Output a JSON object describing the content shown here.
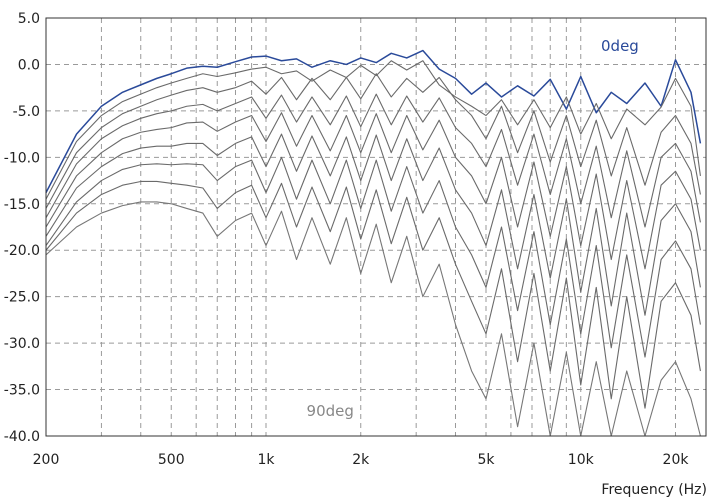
{
  "chart_data": {
    "type": "line",
    "title": "",
    "xlabel": "Frequency (Hz)",
    "ylabel": "",
    "xscale": "log",
    "xlim": [
      200,
      25000
    ],
    "ylim": [
      -40,
      5
    ],
    "grid": true,
    "x_ticks": [
      {
        "value": 200,
        "label": "200"
      },
      {
        "value": 500,
        "label": "500"
      },
      {
        "value": 1000,
        "label": "1k"
      },
      {
        "value": 2000,
        "label": "2k"
      },
      {
        "value": 5000,
        "label": "5k"
      },
      {
        "value": 10000,
        "label": "10k"
      },
      {
        "value": 20000,
        "label": "20k"
      }
    ],
    "x_minor_grid": [
      300,
      400,
      600,
      700,
      800,
      900,
      3000,
      4000,
      6000,
      7000,
      8000,
      9000
    ],
    "y_ticks": [
      {
        "value": 5,
        "label": "5.0"
      },
      {
        "value": 0,
        "label": "0.0"
      },
      {
        "value": -5,
        "label": "-5.0"
      },
      {
        "value": -10,
        "label": "-10.0"
      },
      {
        "value": -15,
        "label": "-15.0"
      },
      {
        "value": -20,
        "label": "-20.0"
      },
      {
        "value": -25,
        "label": "-25.0"
      },
      {
        "value": -30,
        "label": "-30.0"
      },
      {
        "value": -35,
        "label": "-35.0"
      },
      {
        "value": -40,
        "label": "-40.0"
      }
    ],
    "x": [
      200,
      250,
      300,
      350,
      400,
      450,
      500,
      560,
      630,
      700,
      800,
      900,
      1000,
      1120,
      1250,
      1400,
      1600,
      1800,
      2000,
      2240,
      2500,
      2800,
      3150,
      3550,
      4000,
      4500,
      5000,
      5600,
      6300,
      7100,
      8000,
      9000,
      10000,
      11200,
      12500,
      14000,
      16000,
      18000,
      20000,
      22400,
      24000
    ],
    "series": [
      {
        "name": "0deg",
        "color": "#2a4a9a",
        "values": [
          -13.8,
          -7.5,
          -4.5,
          -3,
          -2.2,
          -1.5,
          -1,
          -0.4,
          -0.2,
          -0.3,
          0.3,
          0.8,
          0.9,
          0.4,
          0.6,
          -0.3,
          0.4,
          0,
          0.7,
          0.2,
          1.2,
          0.7,
          1.5,
          -0.5,
          -1.5,
          -3.2,
          -2,
          -3.5,
          -2.3,
          -3.4,
          -1.6,
          -4.8,
          -1.3,
          -5.2,
          -3,
          -4.2,
          -2,
          -4.5,
          0.5,
          -3,
          -8.5
        ]
      },
      {
        "values": [
          -14.5,
          -8.3,
          -5.5,
          -4,
          -3.2,
          -2.5,
          -2,
          -1.5,
          -1,
          -1.3,
          -0.9,
          -0.5,
          -0.3,
          -1,
          -0.7,
          -1.8,
          -0.6,
          -1.4,
          -0.1,
          -1.2,
          0.4,
          -0.6,
          0.4,
          -2.2,
          -3.5,
          -4.5,
          -5.5,
          -3.8,
          -6.5,
          -3.8,
          -6.8,
          -3.5,
          -7.5,
          -4.2,
          -8,
          -4.8,
          -6.5,
          -4.6,
          -1.5,
          -4.5,
          -12
        ]
      },
      {
        "values": [
          -15.5,
          -9.5,
          -6.8,
          -5.3,
          -4.5,
          -3.8,
          -3.3,
          -2.8,
          -2.5,
          -3,
          -2.5,
          -1.8,
          -3.2,
          -1.4,
          -3.8,
          -1.5,
          -3.8,
          -1.4,
          -3.7,
          -1,
          -3.5,
          -1.5,
          -3,
          -1.4,
          -3.8,
          -5.5,
          -8,
          -4.5,
          -9.5,
          -5,
          -10.5,
          -5.5,
          -11,
          -6,
          -12,
          -6.8,
          -13,
          -7.3,
          -5.5,
          -8.5,
          -14
        ]
      },
      {
        "values": [
          -16.5,
          -10.7,
          -8,
          -6.6,
          -5.8,
          -5.3,
          -5,
          -4.5,
          -4.3,
          -5,
          -4.2,
          -3.5,
          -5.8,
          -3.3,
          -6.2,
          -3.5,
          -6.5,
          -3.4,
          -6.7,
          -3.2,
          -6.5,
          -3.4,
          -6.2,
          -3.6,
          -6.8,
          -8.5,
          -11,
          -7,
          -13,
          -7.5,
          -14,
          -8,
          -15,
          -8.8,
          -16.5,
          -9.3,
          -17.5,
          -10,
          -8.5,
          -11.5,
          -17
        ]
      },
      {
        "values": [
          -17.5,
          -12,
          -9.5,
          -8,
          -7.3,
          -7,
          -6.8,
          -6.3,
          -6.2,
          -7.2,
          -6.2,
          -5.5,
          -8.3,
          -5.2,
          -8.8,
          -5.5,
          -9.3,
          -5.5,
          -9.5,
          -5.3,
          -9.5,
          -5.5,
          -9.2,
          -6,
          -10,
          -12,
          -15,
          -10,
          -17.5,
          -10.5,
          -18.5,
          -11,
          -19.5,
          -11.8,
          -21,
          -12.5,
          -22,
          -13,
          -11.5,
          -14.5,
          -20
        ]
      },
      {
        "values": [
          -18.5,
          -13.3,
          -11,
          -9.6,
          -9,
          -8.8,
          -8.8,
          -8.5,
          -8.5,
          -9.8,
          -8.5,
          -7.8,
          -11,
          -7.5,
          -11.5,
          -7.7,
          -12,
          -7.8,
          -12.5,
          -7.6,
          -12.5,
          -8,
          -12.5,
          -9,
          -13.5,
          -16,
          -19.5,
          -13.5,
          -22,
          -14,
          -23,
          -14.5,
          -24.5,
          -15.5,
          -26,
          -16,
          -27,
          -16.8,
          -15,
          -18,
          -24
        ]
      },
      {
        "values": [
          -19.5,
          -14.8,
          -12.5,
          -11.3,
          -10.8,
          -10.7,
          -10.8,
          -10.7,
          -10.8,
          -12.5,
          -11,
          -10.3,
          -13.8,
          -10,
          -14.5,
          -10.3,
          -15,
          -10.3,
          -15.5,
          -10.3,
          -15.8,
          -11,
          -16,
          -12.5,
          -17.5,
          -20.5,
          -24,
          -17.5,
          -26.5,
          -18,
          -28,
          -18.8,
          -29,
          -19.5,
          -30.5,
          -20.5,
          -31.5,
          -21,
          -19,
          -22,
          -28
        ]
      },
      {
        "values": [
          -20,
          -16,
          -14,
          -13,
          -12.6,
          -12.6,
          -12.8,
          -13,
          -13.3,
          -15.5,
          -13.8,
          -13,
          -16.5,
          -12.8,
          -17.5,
          -13.2,
          -18,
          -13.2,
          -18.8,
          -13.5,
          -19.3,
          -14.3,
          -20,
          -16.5,
          -21.5,
          -25.5,
          -29,
          -22,
          -32,
          -22.5,
          -33,
          -23,
          -34.5,
          -24,
          -36,
          -25,
          -37,
          -25.5,
          -23.5,
          -27,
          -33
        ]
      },
      {
        "name": "90deg",
        "color": "#777777",
        "values": [
          -20.5,
          -17.5,
          -16,
          -15.2,
          -14.8,
          -14.8,
          -15,
          -15.5,
          -16,
          -18.5,
          -16.8,
          -16,
          -19.5,
          -15.8,
          -21,
          -16.5,
          -21.5,
          -16.5,
          -22.5,
          -17.2,
          -23.5,
          -18.5,
          -25,
          -21.5,
          -28,
          -33,
          -36,
          -29,
          -39,
          -30,
          -40,
          -31,
          -40,
          -32,
          -40,
          -33,
          -40,
          -34,
          -32,
          -36,
          -40
        ]
      }
    ],
    "series_labels": [
      {
        "text": "0deg",
        "color": "#2a4a9a",
        "x": 27000,
        "y": 2
      },
      {
        "text": "90deg",
        "color": "#888888",
        "x": 2900,
        "y": -37.3
      }
    ]
  }
}
